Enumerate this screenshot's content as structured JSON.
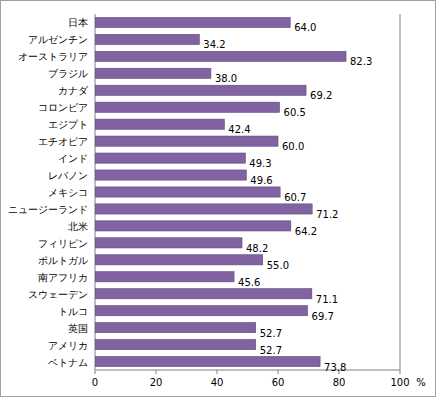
{
  "chart_data": {
    "type": "bar",
    "orientation": "horizontal",
    "categories": [
      "日本",
      "アルゼンチン",
      "オーストラリア",
      "ブラジル",
      "カナダ",
      "コロンビア",
      "エジプト",
      "エチオピア",
      "インド",
      "レバノン",
      "メキシコ",
      "ニュージーランド",
      "北米",
      "フィリピン",
      "ポルトガル",
      "南アフリカ",
      "スウェーデン",
      "トルコ",
      "英国",
      "アメリカ",
      "ベトナム"
    ],
    "values": [
      64.0,
      34.2,
      82.3,
      38.0,
      69.2,
      60.5,
      42.4,
      60.0,
      49.3,
      49.6,
      60.7,
      71.2,
      64.2,
      48.2,
      55.0,
      45.6,
      71.1,
      69.7,
      52.7,
      52.7,
      73.8
    ],
    "value_labels": [
      "64.0",
      "34.2",
      "82.3",
      "38.0",
      "69.2",
      "60.5",
      "42.4",
      "60.0",
      "49.3",
      "49.6",
      "60.7",
      "71.2",
      "64.2",
      "48.2",
      "55.0",
      "45.6",
      "71.1",
      "69.7",
      "52.7",
      "52.7",
      "73.8"
    ],
    "color": "#8064a2",
    "xlabel": "%",
    "xlim": [
      0,
      100
    ],
    "xticks": [
      0,
      20,
      40,
      60,
      80,
      100
    ],
    "grid": false,
    "data_labels": true
  }
}
